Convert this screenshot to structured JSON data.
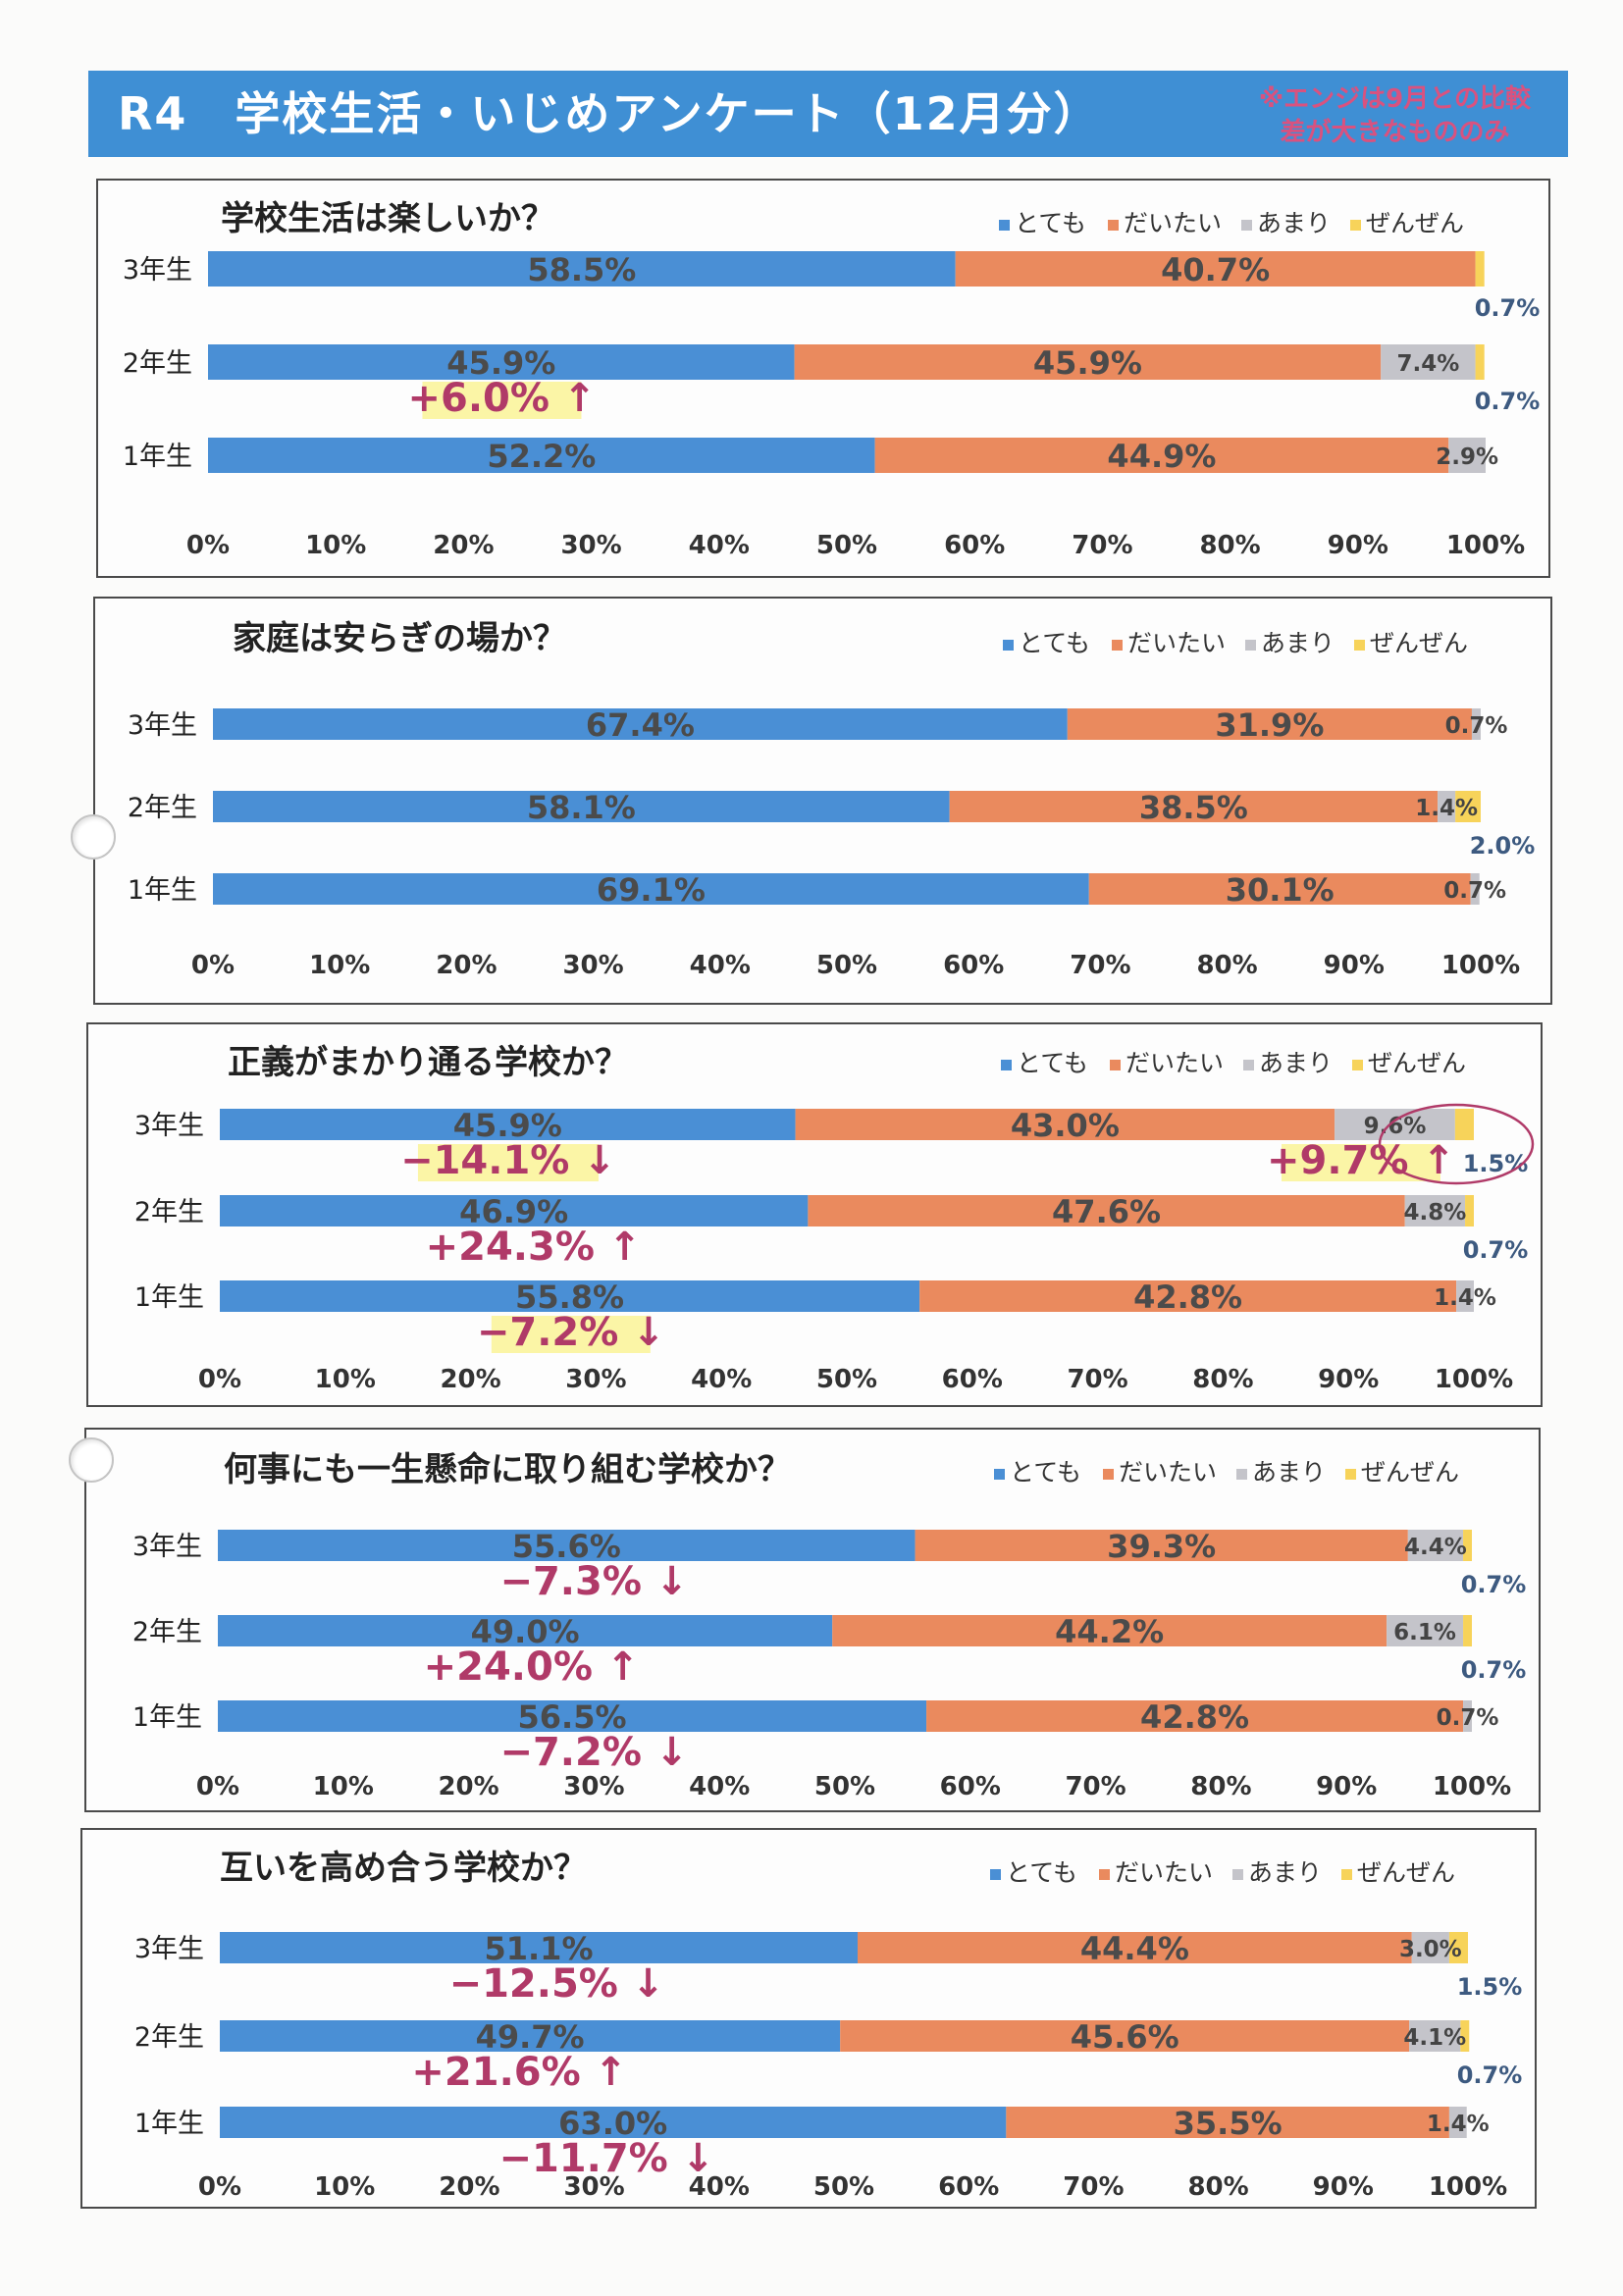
{
  "header": {
    "title": "R4　学校生活・いじめアンケート（12月分）",
    "note_line1": "※エンジは9月との比較",
    "note_line2": "差が大きなもののみ"
  },
  "colors": {
    "header_bg": "#3f8fd4",
    "note": "#d9527f",
    "totemo": "#4a8fd5",
    "daitai": "#ea8a5e",
    "amari": "#c4c4ca",
    "zenzen": "#f7d35a",
    "diff": "#b03a68",
    "diff_highlight": "#fbf5a6"
  },
  "chart_data": [
    {
      "type": "bar",
      "orientation": "horizontal-stacked",
      "title": "学校生活は楽しいか？",
      "categories": [
        "3年生",
        "2年生",
        "1年生"
      ],
      "series": [
        {
          "name": "とても",
          "values": [
            58.5,
            45.9,
            52.2
          ]
        },
        {
          "name": "だいたい",
          "values": [
            40.7,
            45.9,
            44.9
          ]
        },
        {
          "name": "あまり",
          "values": [
            0,
            7.4,
            2.9
          ]
        },
        {
          "name": "ぜんぜん",
          "values": [
            0.7,
            0.7,
            0
          ]
        }
      ],
      "data_labels": [
        [
          "58.5%",
          "40.7%",
          "",
          "0.7%"
        ],
        [
          "45.9%",
          "45.9%",
          "7.4%",
          "0.7%"
        ],
        [
          "52.2%",
          "44.9%",
          "2.9%",
          ""
        ]
      ],
      "annotations": [
        {
          "category": "2年生",
          "series": "とても",
          "text": "+6.0%",
          "arrow": "↑",
          "highlight": true,
          "at": 23
        }
      ],
      "xlim": [
        0,
        100
      ],
      "xticks": [
        "0%",
        "10%",
        "20%",
        "30%",
        "40%",
        "50%",
        "60%",
        "70%",
        "80%",
        "90%",
        "100%"
      ],
      "legend_position": "top-right"
    },
    {
      "type": "bar",
      "orientation": "horizontal-stacked",
      "title": "家庭は安らぎの場か？",
      "categories": [
        "3年生",
        "2年生",
        "1年生"
      ],
      "series": [
        {
          "name": "とても",
          "values": [
            67.4,
            58.1,
            69.1
          ]
        },
        {
          "name": "だいたい",
          "values": [
            31.9,
            38.5,
            30.1
          ]
        },
        {
          "name": "あまり",
          "values": [
            0.7,
            1.4,
            0.7
          ]
        },
        {
          "name": "ぜんぜん",
          "values": [
            0,
            2.0,
            0
          ]
        }
      ],
      "data_labels": [
        [
          "67.4%",
          "31.9%",
          "0.7%",
          ""
        ],
        [
          "58.1%",
          "38.5%",
          "1.4%",
          "2.0%"
        ],
        [
          "69.1%",
          "30.1%",
          "0.7%",
          ""
        ]
      ],
      "annotations": [],
      "xlim": [
        0,
        100
      ],
      "xticks": [
        "0%",
        "10%",
        "20%",
        "30%",
        "40%",
        "50%",
        "60%",
        "70%",
        "80%",
        "90%",
        "100%"
      ],
      "legend_position": "top-right"
    },
    {
      "type": "bar",
      "orientation": "horizontal-stacked",
      "title": "正義がまかり通る学校か？",
      "categories": [
        "3年生",
        "2年生",
        "1年生"
      ],
      "series": [
        {
          "name": "とても",
          "values": [
            45.9,
            46.9,
            55.8
          ]
        },
        {
          "name": "だいたい",
          "values": [
            43.0,
            47.6,
            42.8
          ]
        },
        {
          "name": "あまり",
          "values": [
            9.6,
            4.8,
            1.4
          ]
        },
        {
          "name": "ぜんぜん",
          "values": [
            1.5,
            0.7,
            0
          ]
        }
      ],
      "data_labels": [
        [
          "45.9%",
          "43.0%",
          "9.6%",
          "1.5%"
        ],
        [
          "46.9%",
          "47.6%",
          "4.8%",
          "0.7%"
        ],
        [
          "55.8%",
          "42.8%",
          "1.4%",
          ""
        ]
      ],
      "annotations": [
        {
          "category": "3年生",
          "series": "とても",
          "text": "−14.1%",
          "arrow": "↓",
          "highlight": true,
          "at": 23
        },
        {
          "category": "3年生",
          "series": "あまり",
          "text": "+9.7%",
          "arrow": "↑",
          "highlight": true,
          "at": 91,
          "circled": true
        },
        {
          "category": "2年生",
          "series": "とても",
          "text": "+24.3%",
          "arrow": "↑",
          "highlight": false,
          "at": 25
        },
        {
          "category": "1年生",
          "series": "とても",
          "text": "−7.2%",
          "arrow": "↓",
          "highlight": true,
          "at": 28
        }
      ],
      "xlim": [
        0,
        100
      ],
      "xticks": [
        "0%",
        "10%",
        "20%",
        "30%",
        "40%",
        "50%",
        "60%",
        "70%",
        "80%",
        "90%",
        "100%"
      ],
      "legend_position": "top-right"
    },
    {
      "type": "bar",
      "orientation": "horizontal-stacked",
      "title": "何事にも一生懸命に取り組む学校か？",
      "categories": [
        "3年生",
        "2年生",
        "1年生"
      ],
      "series": [
        {
          "name": "とても",
          "values": [
            55.6,
            49.0,
            56.5
          ]
        },
        {
          "name": "だいたい",
          "values": [
            39.3,
            44.2,
            42.8
          ]
        },
        {
          "name": "あまり",
          "values": [
            4.4,
            6.1,
            0.7
          ]
        },
        {
          "name": "ぜんぜん",
          "values": [
            0.7,
            0.7,
            0
          ]
        }
      ],
      "data_labels": [
        [
          "55.6%",
          "39.3%",
          "4.4%",
          "0.7%"
        ],
        [
          "49.0%",
          "44.2%",
          "6.1%",
          "0.7%"
        ],
        [
          "56.5%",
          "42.8%",
          "0.7%",
          ""
        ]
      ],
      "annotations": [
        {
          "category": "3年生",
          "series": "とても",
          "text": "−7.3%",
          "arrow": "↓",
          "highlight": false,
          "at": 30
        },
        {
          "category": "2年生",
          "series": "とても",
          "text": "+24.0%",
          "arrow": "↑",
          "highlight": false,
          "at": 25
        },
        {
          "category": "1年生",
          "series": "とても",
          "text": "−7.2%",
          "arrow": "↓",
          "highlight": false,
          "at": 30
        }
      ],
      "xlim": [
        0,
        100
      ],
      "xticks": [
        "0%",
        "10%",
        "20%",
        "30%",
        "40%",
        "50%",
        "60%",
        "70%",
        "80%",
        "90%",
        "100%"
      ],
      "legend_position": "top-right"
    },
    {
      "type": "bar",
      "orientation": "horizontal-stacked",
      "title": "互いを高め合う学校か？",
      "categories": [
        "3年生",
        "2年生",
        "1年生"
      ],
      "series": [
        {
          "name": "とても",
          "values": [
            51.1,
            49.7,
            63.0
          ]
        },
        {
          "name": "だいたい",
          "values": [
            44.4,
            45.6,
            35.5
          ]
        },
        {
          "name": "あまり",
          "values": [
            3.0,
            4.1,
            1.4
          ]
        },
        {
          "name": "ぜんぜん",
          "values": [
            1.5,
            0.7,
            0
          ]
        }
      ],
      "data_labels": [
        [
          "51.1%",
          "44.4%",
          "3.0%",
          "1.5%"
        ],
        [
          "49.7%",
          "45.6%",
          "4.1%",
          "0.7%"
        ],
        [
          "63.0%",
          "35.5%",
          "1.4%",
          ""
        ]
      ],
      "annotations": [
        {
          "category": "3年生",
          "series": "とても",
          "text": "−12.5%",
          "arrow": "↓",
          "highlight": false,
          "at": 27
        },
        {
          "category": "2年生",
          "series": "とても",
          "text": "+21.6%",
          "arrow": "↑",
          "highlight": false,
          "at": 24
        },
        {
          "category": "1年生",
          "series": "とても",
          "text": "−11.7%",
          "arrow": "↓",
          "highlight": false,
          "at": 31
        }
      ],
      "xlim": [
        0,
        100
      ],
      "xticks": [
        "0%",
        "10%",
        "20%",
        "30%",
        "40%",
        "50%",
        "60%",
        "70%",
        "80%",
        "90%",
        "100%"
      ],
      "legend_position": "top-right"
    }
  ]
}
